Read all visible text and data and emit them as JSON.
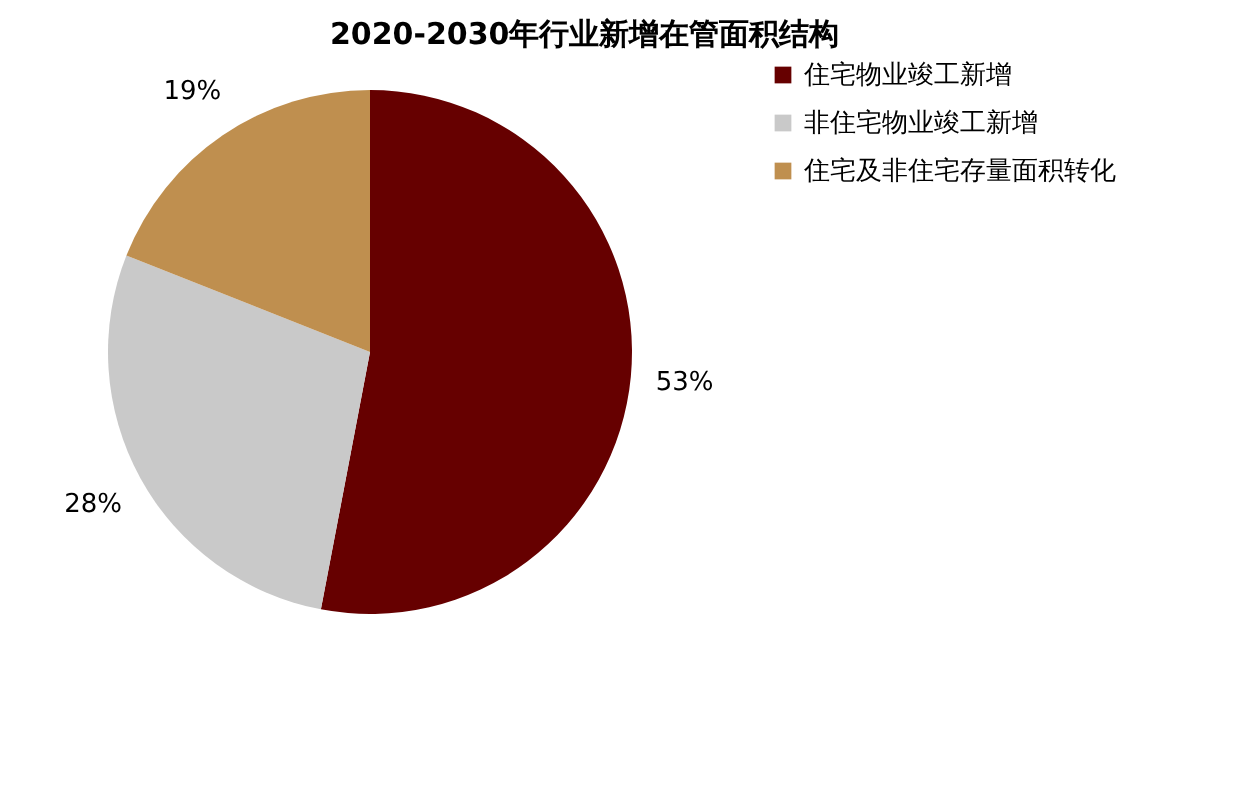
{
  "chart_data": {
    "type": "pie",
    "title": "2020-2030年行业新增在管面积结构",
    "categories": [
      "住宅物业竣工新增",
      "非住宅物业竣工新增",
      "住宅及非住宅存量面积转化"
    ],
    "values": [
      53,
      28,
      19
    ],
    "colors": [
      "#660000",
      "#c9c9c9",
      "#bf8f4f"
    ],
    "value_labels": [
      "53%",
      "28%",
      "19%"
    ],
    "legend": "right"
  }
}
